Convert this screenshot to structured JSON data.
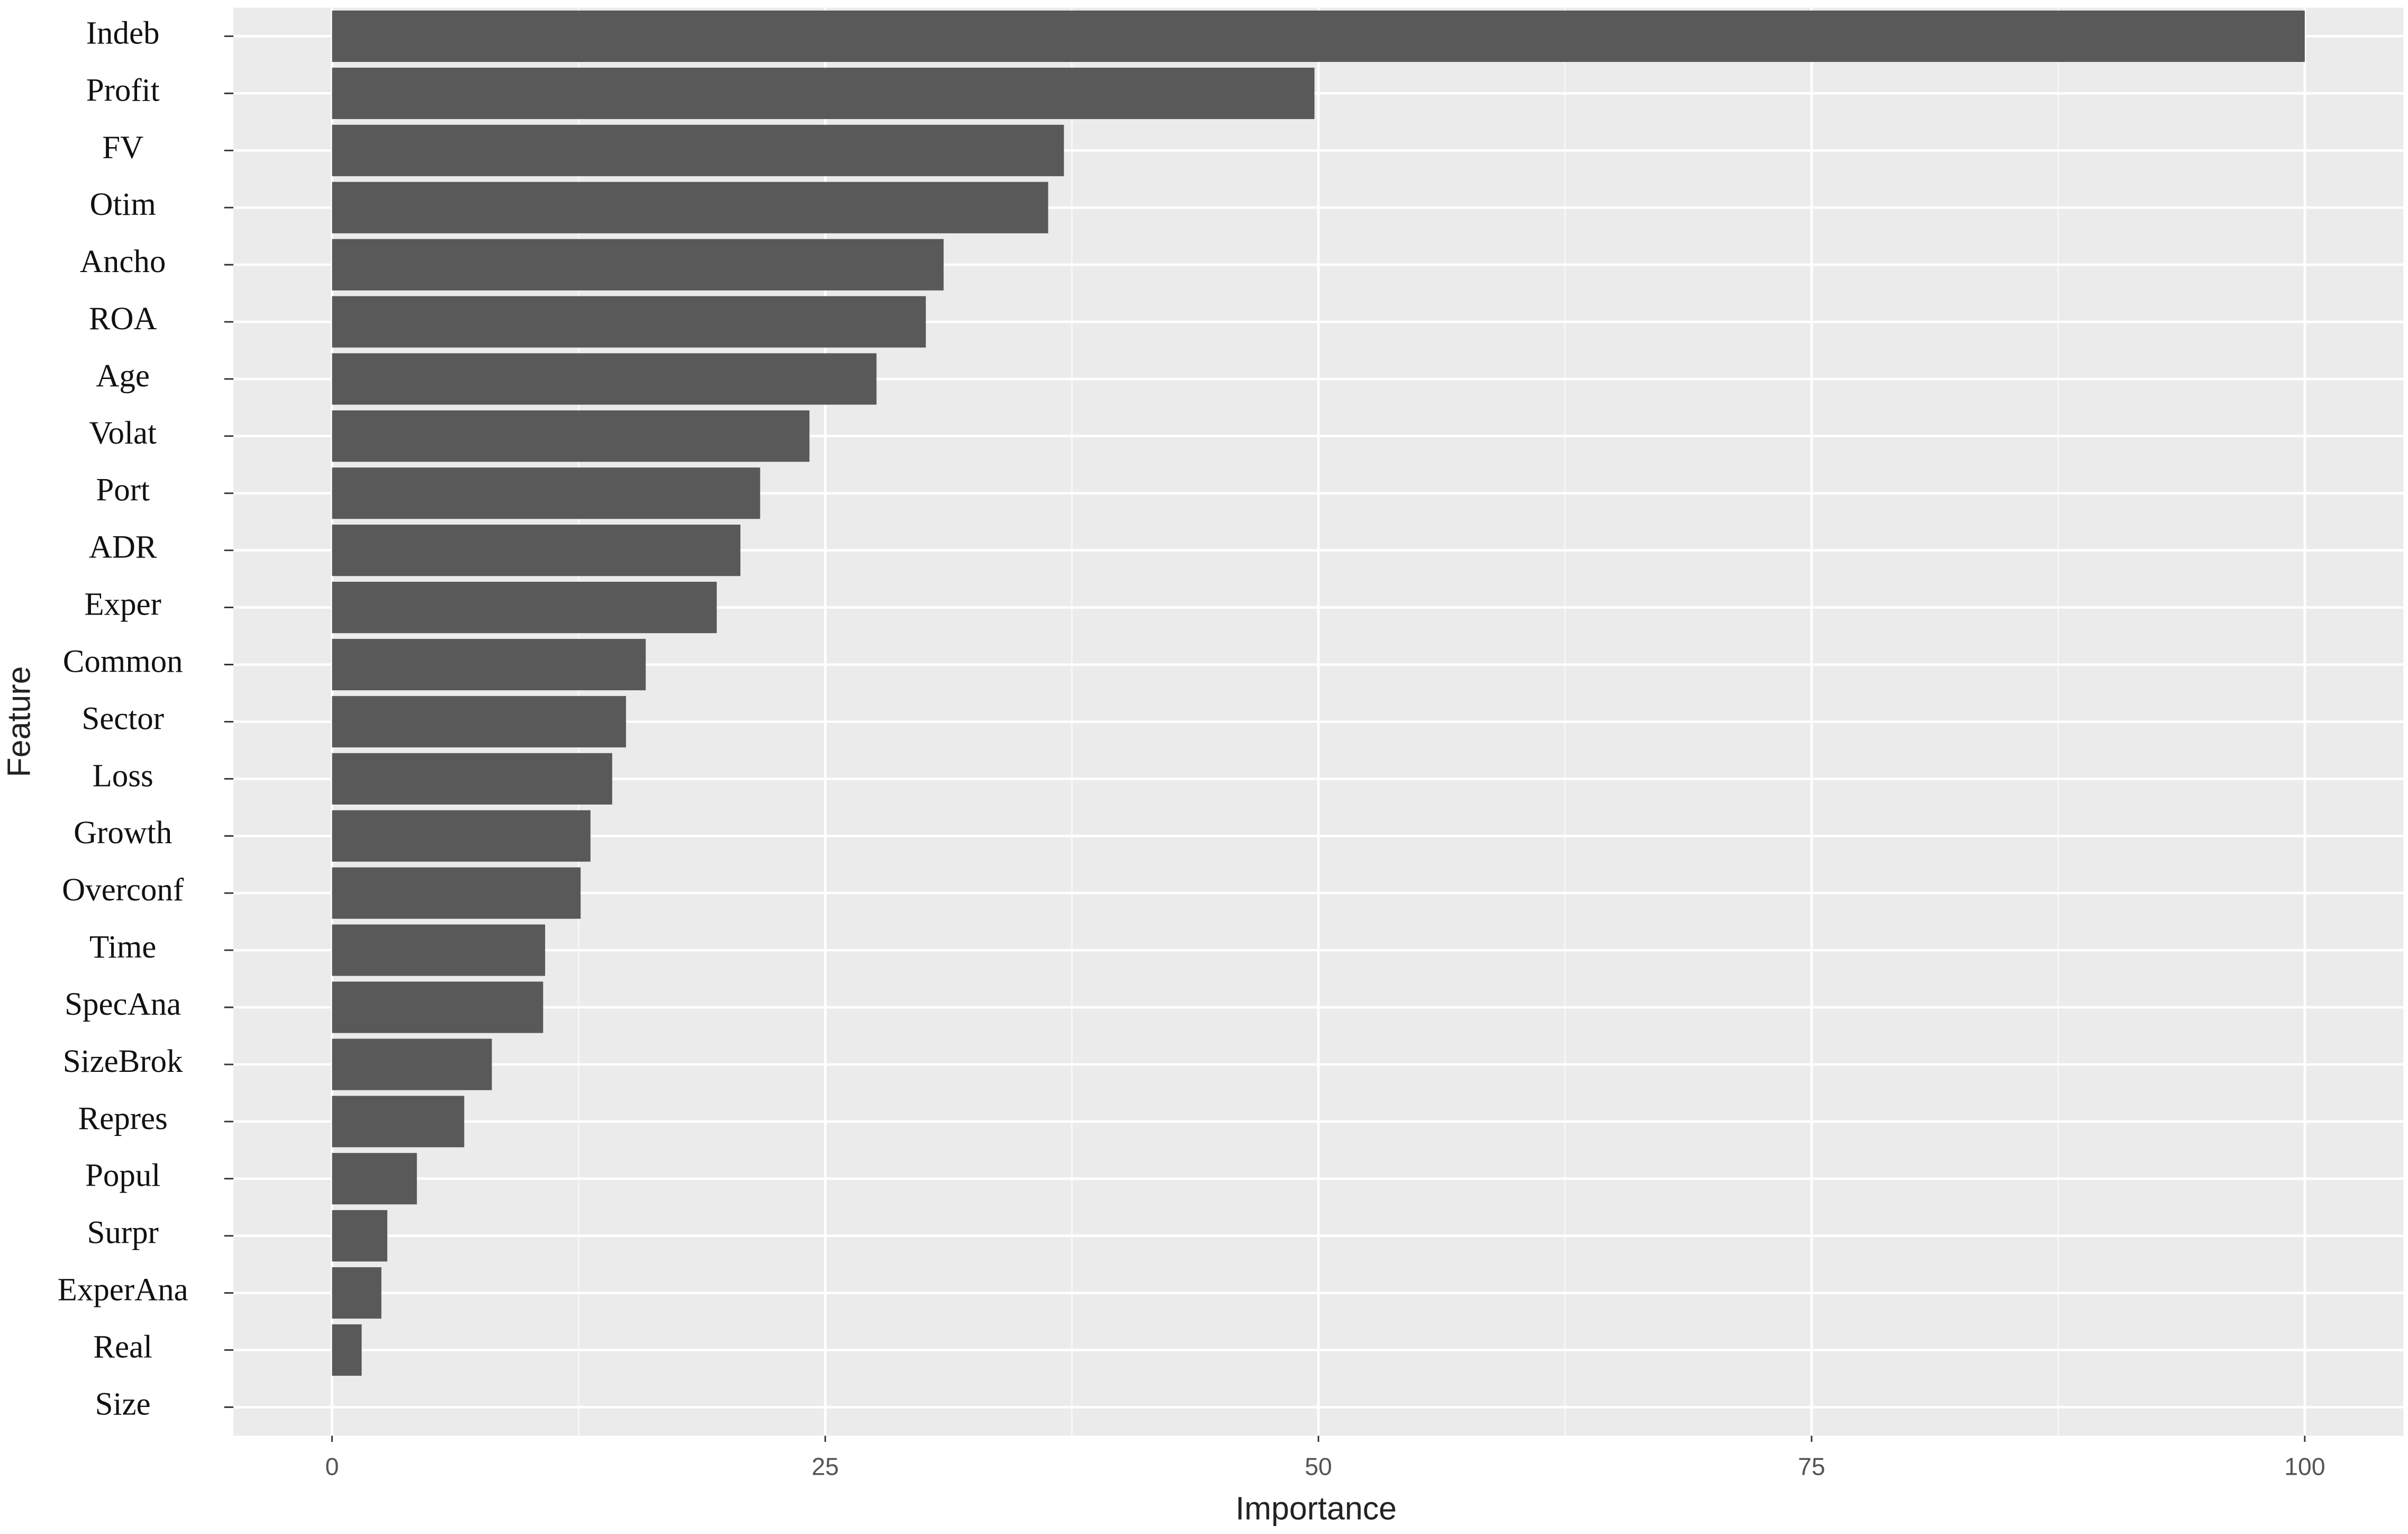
{
  "chart_data": {
    "type": "barh",
    "x_label": "Importance",
    "y_label": "Feature",
    "categories": [
      "Indeb",
      "Profit",
      "FV",
      "Otim",
      "Ancho",
      "ROA",
      "Age",
      "Volat",
      "Port",
      "ADR",
      "Exper",
      "Common",
      "Sector",
      "Loss",
      "Growth",
      "Overconf",
      "Time",
      "SpecAna",
      "SizeBrok",
      "Repres",
      "Popul",
      "Surpr",
      "ExperAna",
      "Real",
      "Size"
    ],
    "values": [
      100,
      49.8,
      37.1,
      36.3,
      31.0,
      30.1,
      27.6,
      24.2,
      21.7,
      20.7,
      19.5,
      15.9,
      14.9,
      14.2,
      13.1,
      12.6,
      10.8,
      10.7,
      8.1,
      6.7,
      4.3,
      2.8,
      2.5,
      1.5,
      0
    ],
    "color": "#595959",
    "xlim": [
      -5,
      105
    ],
    "xticks": [
      0,
      25,
      50,
      75,
      100
    ],
    "grid": true
  }
}
